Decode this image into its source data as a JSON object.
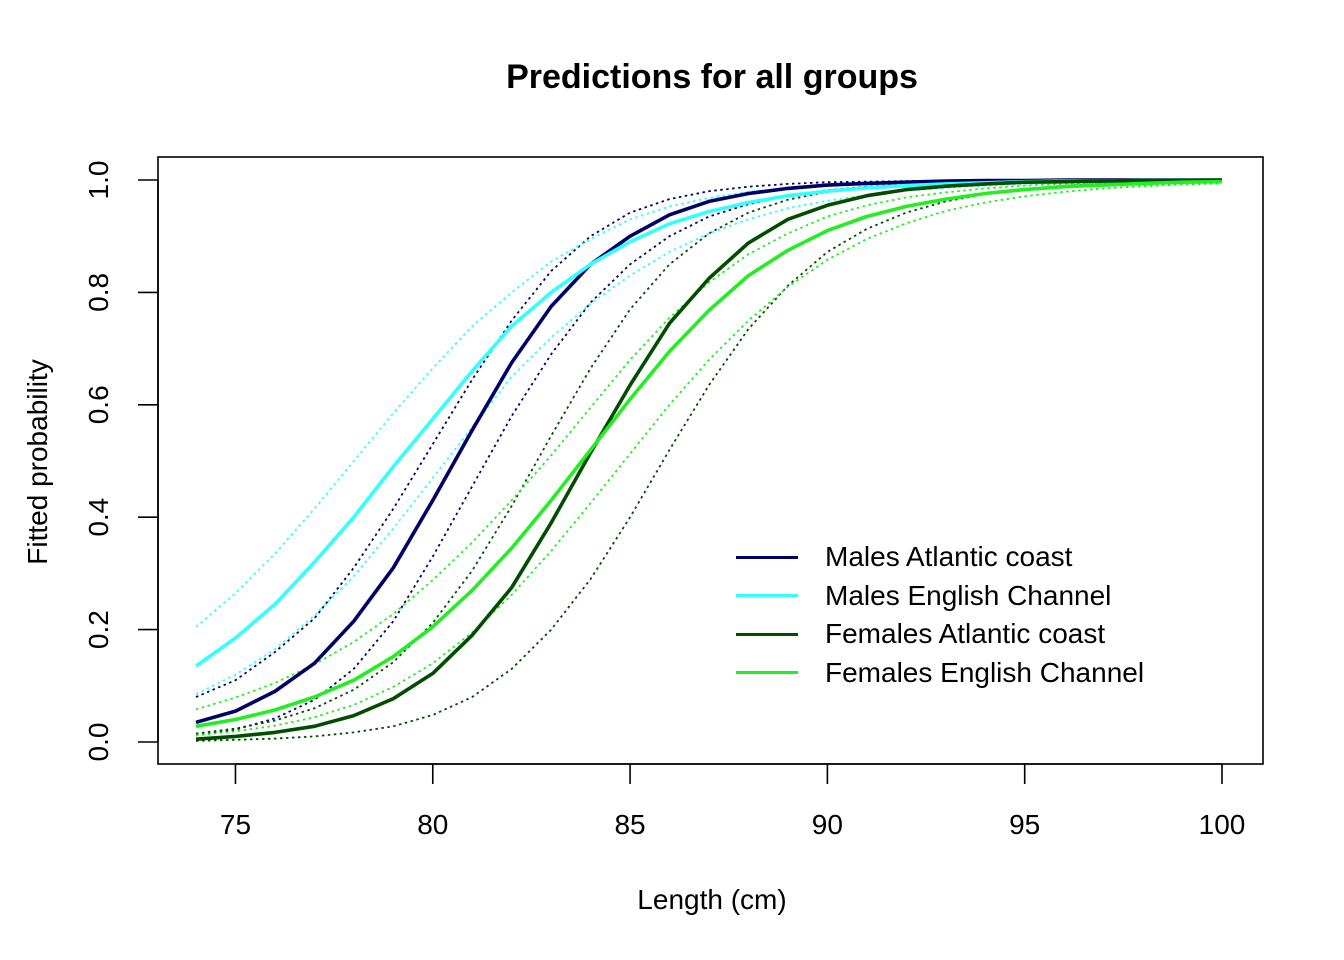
{
  "chart_data": {
    "type": "line",
    "title": "Predictions for all groups",
    "xlabel": "Length (cm)",
    "ylabel": "Fitted probability",
    "xlim": [
      74,
      100
    ],
    "ylim": [
      0,
      1
    ],
    "xticks": [
      75,
      80,
      85,
      90,
      95,
      100
    ],
    "yticks": [
      0.0,
      0.2,
      0.4,
      0.6,
      0.8,
      1.0
    ],
    "ytick_labels": [
      "0.0",
      "0.2",
      "0.4",
      "0.6",
      "0.8",
      "1.0"
    ],
    "grid": false,
    "legend_position": "bottom-right",
    "x": [
      74,
      75,
      76,
      77,
      78,
      79,
      80,
      81,
      82,
      83,
      84,
      85,
      86,
      87,
      88,
      89,
      90,
      91,
      92,
      93,
      94,
      95,
      96,
      97,
      98,
      99,
      100
    ],
    "series": [
      {
        "name": "Males Atlantic coast",
        "color": "#000066",
        "values": [
          0.035,
          0.055,
          0.09,
          0.14,
          0.215,
          0.31,
          0.43,
          0.555,
          0.675,
          0.775,
          0.85,
          0.9,
          0.938,
          0.962,
          0.976,
          0.985,
          0.991,
          0.994,
          0.996,
          0.998,
          0.999,
          0.999,
          1.0,
          1.0,
          1.0,
          1.0,
          1.0
        ],
        "lower": [
          0.012,
          0.022,
          0.042,
          0.075,
          0.13,
          0.215,
          0.33,
          0.455,
          0.58,
          0.69,
          0.782,
          0.85,
          0.9,
          0.935,
          0.957,
          0.972,
          0.982,
          0.988,
          0.992,
          0.995,
          0.997,
          0.998,
          0.999,
          0.999,
          1.0,
          1.0,
          1.0
        ],
        "upper": [
          0.08,
          0.11,
          0.16,
          0.22,
          0.31,
          0.415,
          0.53,
          0.645,
          0.75,
          0.838,
          0.9,
          0.942,
          0.966,
          0.98,
          0.988,
          0.993,
          0.996,
          0.997,
          0.998,
          0.999,
          0.999,
          1.0,
          1.0,
          1.0,
          1.0,
          1.0,
          1.0
        ]
      },
      {
        "name": "Males English Channel",
        "color": "#33FFFF",
        "values": [
          0.135,
          0.185,
          0.245,
          0.32,
          0.4,
          0.49,
          0.575,
          0.66,
          0.74,
          0.8,
          0.85,
          0.89,
          0.922,
          0.944,
          0.96,
          0.972,
          0.98,
          0.986,
          0.99,
          0.993,
          0.995,
          0.997,
          0.998,
          0.998,
          0.999,
          0.999,
          1.0
        ],
        "lower": [
          0.085,
          0.12,
          0.165,
          0.225,
          0.295,
          0.38,
          0.47,
          0.56,
          0.65,
          0.72,
          0.78,
          0.83,
          0.872,
          0.905,
          0.93,
          0.95,
          0.963,
          0.973,
          0.981,
          0.986,
          0.99,
          0.993,
          0.995,
          0.996,
          0.997,
          0.998,
          0.999
        ],
        "upper": [
          0.205,
          0.265,
          0.335,
          0.415,
          0.5,
          0.585,
          0.665,
          0.74,
          0.8,
          0.855,
          0.895,
          0.93,
          0.953,
          0.968,
          0.979,
          0.986,
          0.991,
          0.994,
          0.996,
          0.997,
          0.998,
          0.999,
          0.999,
          1.0,
          1.0,
          1.0,
          1.0
        ]
      },
      {
        "name": "Females Atlantic coast",
        "color": "#004D00",
        "values": [
          0.005,
          0.01,
          0.017,
          0.028,
          0.047,
          0.077,
          0.122,
          0.19,
          0.275,
          0.39,
          0.515,
          0.635,
          0.745,
          0.825,
          0.888,
          0.93,
          0.955,
          0.972,
          0.983,
          0.989,
          0.993,
          0.996,
          0.997,
          0.998,
          0.999,
          0.999,
          1.0
        ],
        "lower": [
          0.002,
          0.004,
          0.006,
          0.01,
          0.017,
          0.028,
          0.048,
          0.08,
          0.13,
          0.2,
          0.29,
          0.4,
          0.52,
          0.635,
          0.735,
          0.812,
          0.872,
          0.913,
          0.942,
          0.962,
          0.975,
          0.984,
          0.99,
          0.993,
          0.996,
          0.997,
          0.998
        ],
        "upper": [
          0.015,
          0.024,
          0.038,
          0.06,
          0.093,
          0.142,
          0.212,
          0.305,
          0.42,
          0.545,
          0.665,
          0.77,
          0.85,
          0.905,
          0.942,
          0.965,
          0.979,
          0.987,
          0.992,
          0.995,
          0.997,
          0.998,
          0.999,
          0.999,
          1.0,
          1.0,
          1.0
        ]
      },
      {
        "name": "Females English Channel",
        "color": "#22EE22",
        "values": [
          0.028,
          0.04,
          0.057,
          0.08,
          0.11,
          0.152,
          0.205,
          0.27,
          0.345,
          0.43,
          0.52,
          0.61,
          0.695,
          0.768,
          0.83,
          0.875,
          0.91,
          0.935,
          0.953,
          0.966,
          0.976,
          0.983,
          0.988,
          0.991,
          0.994,
          0.996,
          0.997
        ],
        "lower": [
          0.012,
          0.019,
          0.029,
          0.044,
          0.066,
          0.098,
          0.14,
          0.195,
          0.262,
          0.34,
          0.425,
          0.513,
          0.6,
          0.68,
          0.75,
          0.81,
          0.858,
          0.895,
          0.923,
          0.945,
          0.96,
          0.971,
          0.979,
          0.985,
          0.989,
          0.992,
          0.994
        ],
        "upper": [
          0.058,
          0.079,
          0.105,
          0.138,
          0.178,
          0.228,
          0.288,
          0.355,
          0.43,
          0.51,
          0.595,
          0.68,
          0.755,
          0.818,
          0.868,
          0.905,
          0.935,
          0.955,
          0.969,
          0.978,
          0.985,
          0.99,
          0.993,
          0.995,
          0.997,
          0.998,
          0.999
        ]
      }
    ]
  }
}
